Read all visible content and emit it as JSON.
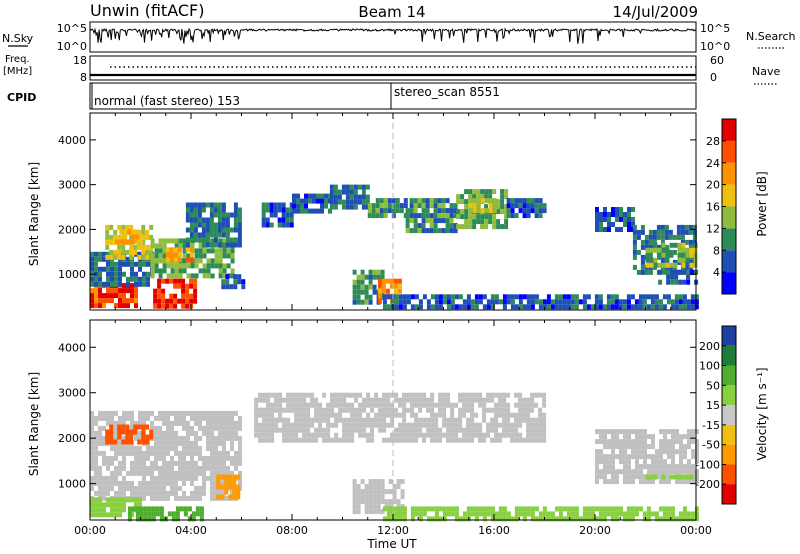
{
  "header": {
    "title": "Unwin (fitACF)",
    "beam": "Beam 14",
    "date": "14/Jul/2009"
  },
  "status_panels": {
    "nsky_label": "N.Sky",
    "nsky_ticks": [
      "10^5",
      "10^0"
    ],
    "nsearch_label": "N.Search",
    "nsearch_ticks": [
      "10^5",
      "10^0"
    ],
    "freq_label_1": "Freq.",
    "freq_label_2": "[MHz]",
    "freq_ticks": [
      "18",
      "8"
    ],
    "nave_label": "Nave",
    "nave_ticks": [
      "60",
      "0"
    ],
    "cpid_label": "CPID",
    "cpid_segments": [
      {
        "text": "normal (fast stereo) 153",
        "start_hour": 0
      },
      {
        "text": "stereo_scan 8551",
        "start_hour": 12
      }
    ]
  },
  "colors": {
    "power_scale": [
      "#0000ff",
      "#1f4fb4",
      "#2e8b57",
      "#8fbc3f",
      "#f0c010",
      "#ff9000",
      "#ff5000",
      "#e00000"
    ],
    "velocity_scale": [
      "#1f3fa0",
      "#1e7b3a",
      "#4fae30",
      "#88d040",
      "#c8c8c8",
      "#f0c010",
      "#ff9a00",
      "#ff5000",
      "#e00000"
    ],
    "ground_scatter": "#c0c0c0"
  },
  "chart_data": [
    {
      "type": "heatmap",
      "name": "power-panel",
      "xlabel": "",
      "ylabel": "Slant Range [km]",
      "xlim": [
        0,
        24
      ],
      "ylim": [
        200,
        4600
      ],
      "yticks": [
        1000,
        2000,
        3000,
        4000
      ],
      "colorbar": {
        "label": "Power [dB]",
        "ticks": [
          4,
          8,
          12,
          16,
          20,
          24,
          28
        ],
        "range": [
          0,
          32
        ]
      },
      "regions": [
        {
          "t0": 0.0,
          "t1": 1.8,
          "r0": 300,
          "r1": 800,
          "value": 27
        },
        {
          "t0": 0.0,
          "t1": 2.5,
          "r0": 800,
          "r1": 1500,
          "value": 8
        },
        {
          "t0": 0.6,
          "t1": 2.4,
          "r0": 1400,
          "r1": 2100,
          "value": 16
        },
        {
          "t0": 1.0,
          "t1": 2.0,
          "r0": 1700,
          "r1": 2000,
          "value": 20
        },
        {
          "t0": 2.5,
          "t1": 4.2,
          "r0": 300,
          "r1": 900,
          "value": 28
        },
        {
          "t0": 2.4,
          "t1": 5.6,
          "r0": 1000,
          "r1": 1800,
          "value": 12
        },
        {
          "t0": 3.0,
          "t1": 4.0,
          "r0": 1300,
          "r1": 1600,
          "value": 22
        },
        {
          "t0": 3.8,
          "t1": 6.0,
          "r0": 1700,
          "r1": 2600,
          "value": 8
        },
        {
          "t0": 5.2,
          "t1": 6.0,
          "r0": 700,
          "r1": 1000,
          "value": 6
        },
        {
          "t0": 6.8,
          "t1": 8.0,
          "r0": 2100,
          "r1": 2600,
          "value": 6
        },
        {
          "t0": 8.0,
          "t1": 9.5,
          "r0": 2400,
          "r1": 2800,
          "value": 6
        },
        {
          "t0": 9.5,
          "t1": 11.0,
          "r0": 2500,
          "r1": 3000,
          "value": 8
        },
        {
          "t0": 11.0,
          "t1": 12.5,
          "r0": 2300,
          "r1": 2700,
          "value": 10
        },
        {
          "t0": 12.5,
          "t1": 14.5,
          "r0": 2000,
          "r1": 2700,
          "value": 10
        },
        {
          "t0": 14.5,
          "t1": 16.5,
          "r0": 2100,
          "r1": 2900,
          "value": 12
        },
        {
          "t0": 15.0,
          "t1": 16.0,
          "r0": 2400,
          "r1": 2700,
          "value": 16
        },
        {
          "t0": 16.5,
          "t1": 18.0,
          "r0": 2300,
          "r1": 2700,
          "value": 6
        },
        {
          "t0": 10.4,
          "t1": 11.6,
          "r0": 400,
          "r1": 1100,
          "value": 10
        },
        {
          "t0": 11.4,
          "t1": 12.2,
          "r0": 400,
          "r1": 900,
          "value": 22
        },
        {
          "t0": 11.6,
          "t1": 24.0,
          "r0": 250,
          "r1": 550,
          "value": 6
        },
        {
          "t0": 20.0,
          "t1": 21.5,
          "r0": 2000,
          "r1": 2500,
          "value": 6
        },
        {
          "t0": 21.5,
          "t1": 24.0,
          "r0": 1000,
          "r1": 2100,
          "value": 8
        },
        {
          "t0": 22.0,
          "t1": 24.0,
          "r0": 1200,
          "r1": 1700,
          "value": 14
        },
        {
          "t0": 22.5,
          "t1": 24.0,
          "r0": 800,
          "r1": 1100,
          "value": 6
        }
      ]
    },
    {
      "type": "heatmap",
      "name": "velocity-panel",
      "xlabel": "Time UT",
      "ylabel": "Slant Range [km]",
      "xlim": [
        0,
        24
      ],
      "ylim": [
        200,
        4600
      ],
      "yticks": [
        1000,
        2000,
        3000,
        4000
      ],
      "xticks": [
        "00:00",
        "04:00",
        "08:00",
        "12:00",
        "16:00",
        "20:00",
        "00:00"
      ],
      "colorbar": {
        "label": "Velocity [m s⁻¹]",
        "ticks": [
          200,
          100,
          50,
          15,
          -15,
          -50,
          -100,
          -200
        ]
      },
      "regions": [
        {
          "t0": 0.0,
          "t1": 6.0,
          "r0": 700,
          "r1": 2600,
          "value": 0
        },
        {
          "t0": 0.6,
          "t1": 2.4,
          "r0": 1900,
          "r1": 2300,
          "value": -180
        },
        {
          "t0": 0.0,
          "t1": 2.0,
          "r0": 300,
          "r1": 700,
          "value": 40
        },
        {
          "t0": 1.5,
          "t1": 4.5,
          "r0": 250,
          "r1": 500,
          "value": 80
        },
        {
          "t0": 5.0,
          "t1": 5.8,
          "r0": 700,
          "r1": 1200,
          "value": -60
        },
        {
          "t0": 6.5,
          "t1": 18.0,
          "r0": 2000,
          "r1": 3000,
          "value": 0
        },
        {
          "t0": 10.4,
          "t1": 12.4,
          "r0": 400,
          "r1": 1100,
          "value": 0
        },
        {
          "t0": 11.6,
          "t1": 24.0,
          "r0": 250,
          "r1": 500,
          "value": 30
        },
        {
          "t0": 20.0,
          "t1": 24.0,
          "r0": 1000,
          "r1": 2200,
          "value": 0
        },
        {
          "t0": 22.0,
          "t1": 24.0,
          "r0": 1100,
          "r1": 1200,
          "value": 40
        }
      ]
    }
  ]
}
